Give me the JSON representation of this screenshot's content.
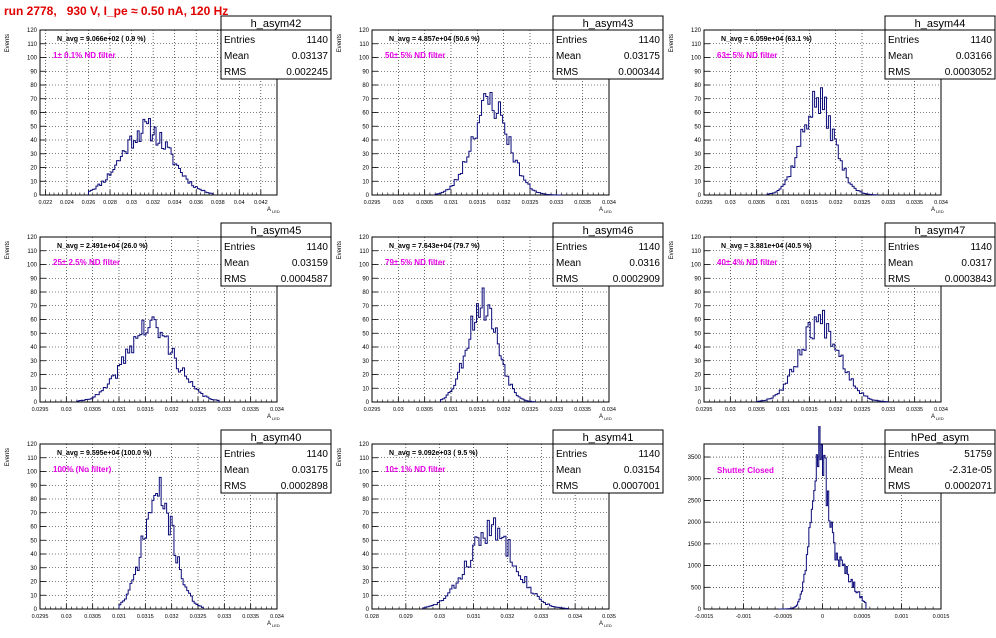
{
  "run_title": "run 2778,   930 V, I_pe ≈ 0.50 nA, 120 Hz",
  "chart_data": [
    {
      "type": "bar",
      "title": "h_asym42",
      "stats": [
        [
          "Entries",
          "1140"
        ],
        [
          "Mean",
          "0.03137"
        ],
        [
          "RMS",
          "0.002245"
        ]
      ],
      "annotation": "N_avg = 9.066e+02 ( 0.9 %)",
      "filter_label": "1± 0.1% ND filter",
      "ylabel": "Events",
      "xlabel": "A",
      "xlabel_sub": "LED",
      "xlim": [
        0.0215,
        0.0435
      ],
      "ylim": [
        0,
        120
      ],
      "xticks": [
        0.022,
        0.024,
        0.026,
        0.028,
        0.03,
        0.032,
        0.034,
        0.036,
        0.038,
        0.04,
        0.042
      ],
      "xticklabels": [
        "0.022",
        "0.024",
        "0.026",
        "0.028",
        "0.03",
        "0.032",
        "0.034",
        "0.036",
        "0.038",
        "0.04",
        "0.042"
      ],
      "yticks": [
        0,
        10,
        20,
        30,
        40,
        50,
        60,
        70,
        80,
        90,
        100,
        110,
        120
      ],
      "yticklabels": [
        "0",
        "10",
        "20",
        "30",
        "40",
        "50",
        "60",
        "70",
        "80",
        "90",
        "100",
        "110",
        "120"
      ],
      "hist": {
        "mean": 0.03137,
        "sigma": 0.00225,
        "peak": 48,
        "start": 0.026,
        "end": 0.0375,
        "nbins": 66,
        "seed": 11
      }
    },
    {
      "type": "bar",
      "title": "h_asym43",
      "stats": [
        [
          "Entries",
          "1140"
        ],
        [
          "Mean",
          "0.03175"
        ],
        [
          "RMS",
          "0.000344"
        ]
      ],
      "annotation": "N_avg = 4.857e+04 (50.6 %)",
      "filter_label": "50± 5% ND filter",
      "ylabel": "Events",
      "xlabel": "A",
      "xlabel_sub": "LED",
      "xlim": [
        0.0295,
        0.034
      ],
      "ylim": [
        0,
        120
      ],
      "xticks": [
        0.0295,
        0.03,
        0.0305,
        0.031,
        0.0315,
        0.032,
        0.0325,
        0.033,
        0.0335,
        0.034
      ],
      "xticklabels": [
        "0.0295",
        "0.03",
        "0.0305",
        "0.031",
        "0.0315",
        "0.032",
        "0.0325",
        "0.033",
        "0.0335",
        "0.034"
      ],
      "yticks": [
        0,
        10,
        20,
        30,
        40,
        50,
        60,
        70,
        80,
        90,
        100,
        110,
        120
      ],
      "yticklabels": [
        "0",
        "10",
        "20",
        "30",
        "40",
        "50",
        "60",
        "70",
        "80",
        "90",
        "100",
        "110",
        "120"
      ],
      "hist": {
        "mean": 0.03175,
        "sigma": 0.00034,
        "peak": 68,
        "start": 0.0307,
        "end": 0.0331,
        "nbins": 60,
        "seed": 23
      }
    },
    {
      "type": "bar",
      "title": "h_asym44",
      "stats": [
        [
          "Entries",
          "1140"
        ],
        [
          "Mean",
          "0.03166"
        ],
        [
          "RMS",
          "0.0003052"
        ]
      ],
      "annotation": "N_avg = 6.059e+04 (63.1 %)",
      "filter_label": "63± 5% ND filter",
      "ylabel": "Events",
      "xlabel": "A",
      "xlabel_sub": "LED",
      "xlim": [
        0.0295,
        0.034
      ],
      "ylim": [
        0,
        120
      ],
      "xticks": [
        0.0295,
        0.03,
        0.0305,
        0.031,
        0.0315,
        0.032,
        0.0325,
        0.033,
        0.0335,
        0.034
      ],
      "xticklabels": [
        "0.0295",
        "0.03",
        "0.0305",
        "0.031",
        "0.0315",
        "0.032",
        "0.0325",
        "0.033",
        "0.0335",
        "0.034"
      ],
      "yticks": [
        0,
        10,
        20,
        30,
        40,
        50,
        60,
        70,
        80,
        90,
        100,
        110,
        120
      ],
      "yticklabels": [
        "0",
        "10",
        "20",
        "30",
        "40",
        "50",
        "60",
        "70",
        "80",
        "90",
        "100",
        "110",
        "120"
      ],
      "hist": {
        "mean": 0.03166,
        "sigma": 0.00031,
        "peak": 68,
        "start": 0.0307,
        "end": 0.0328,
        "nbins": 56,
        "seed": 37
      }
    },
    {
      "type": "bar",
      "title": "h_asym45",
      "stats": [
        [
          "Entries",
          "1140"
        ],
        [
          "Mean",
          "0.03159"
        ],
        [
          "RMS",
          "0.0004587"
        ]
      ],
      "annotation": "N_avg = 2.491e+04 (26.0 %)",
      "filter_label": "25± 2.5% ND filter",
      "ylabel": "Events",
      "xlabel": "A",
      "xlabel_sub": "LED",
      "xlim": [
        0.0295,
        0.034
      ],
      "ylim": [
        0,
        120
      ],
      "xticks": [
        0.0295,
        0.03,
        0.0305,
        0.031,
        0.0315,
        0.032,
        0.0325,
        0.033,
        0.0335,
        0.034
      ],
      "xticklabels": [
        "0.0295",
        "0.03",
        "0.0305",
        "0.031",
        "0.0315",
        "0.032",
        "0.0325",
        "0.033",
        "0.0335",
        "0.034"
      ],
      "yticks": [
        0,
        10,
        20,
        30,
        40,
        50,
        60,
        70,
        80,
        90,
        100,
        110,
        120
      ],
      "yticklabels": [
        "0",
        "10",
        "20",
        "30",
        "40",
        "50",
        "60",
        "70",
        "80",
        "90",
        "100",
        "110",
        "120"
      ],
      "hist": {
        "mean": 0.03159,
        "sigma": 0.00046,
        "peak": 55,
        "start": 0.0302,
        "end": 0.0329,
        "nbins": 70,
        "seed": 41
      }
    },
    {
      "type": "bar",
      "title": "h_asym46",
      "stats": [
        [
          "Entries",
          "1140"
        ],
        [
          "Mean",
          "0.0316"
        ],
        [
          "RMS",
          "0.0002909"
        ]
      ],
      "annotation": "N_avg = 7.643e+04 (79.7 %)",
      "filter_label": "79± 5% ND filter",
      "ylabel": "Events",
      "xlabel": "A",
      "xlabel_sub": "LED",
      "xlim": [
        0.0295,
        0.034
      ],
      "ylim": [
        0,
        120
      ],
      "xticks": [
        0.0295,
        0.03,
        0.0305,
        0.031,
        0.0315,
        0.032,
        0.0325,
        0.033,
        0.0335,
        0.034
      ],
      "xticklabels": [
        "0.0295",
        "0.03",
        "0.0305",
        "0.031",
        "0.0315",
        "0.032",
        "0.0325",
        "0.033",
        "0.0335",
        "0.034"
      ],
      "yticks": [
        0,
        10,
        20,
        30,
        40,
        50,
        60,
        70,
        80,
        90,
        100,
        110,
        120
      ],
      "yticklabels": [
        "0",
        "10",
        "20",
        "30",
        "40",
        "50",
        "60",
        "70",
        "80",
        "90",
        "100",
        "110",
        "120"
      ],
      "hist": {
        "mean": 0.0316,
        "sigma": 0.00029,
        "peak": 72,
        "start": 0.0308,
        "end": 0.0326,
        "nbins": 50,
        "seed": 53
      }
    },
    {
      "type": "bar",
      "title": "h_asym47",
      "stats": [
        [
          "Entries",
          "1140"
        ],
        [
          "Mean",
          "0.0317"
        ],
        [
          "RMS",
          "0.0003843"
        ]
      ],
      "annotation": "N_avg = 3.881e+04 (40.5 %)",
      "filter_label": "40± 4% ND filter",
      "ylabel": "Events",
      "xlabel": "A",
      "xlabel_sub": "LED",
      "xlim": [
        0.0295,
        0.034
      ],
      "ylim": [
        0,
        120
      ],
      "xticks": [
        0.0295,
        0.03,
        0.0305,
        0.031,
        0.0315,
        0.032,
        0.0325,
        0.033,
        0.0335,
        0.034
      ],
      "xticklabels": [
        "0.0295",
        "0.03",
        "0.0305",
        "0.031",
        "0.0315",
        "0.032",
        "0.0325",
        "0.033",
        "0.0335",
        "0.034"
      ],
      "yticks": [
        0,
        10,
        20,
        30,
        40,
        50,
        60,
        70,
        80,
        90,
        100,
        110,
        120
      ],
      "yticklabels": [
        "0",
        "10",
        "20",
        "30",
        "40",
        "50",
        "60",
        "70",
        "80",
        "90",
        "100",
        "110",
        "120"
      ],
      "hist": {
        "mean": 0.0317,
        "sigma": 0.00038,
        "peak": 59,
        "start": 0.0305,
        "end": 0.033,
        "nbins": 64,
        "seed": 67
      }
    },
    {
      "type": "bar",
      "title": "h_asym40",
      "stats": [
        [
          "Entries",
          "1140"
        ],
        [
          "Mean",
          "0.03175"
        ],
        [
          "RMS",
          "0.0002898"
        ]
      ],
      "annotation": "N_avg = 9.595e+04 (100.0 %)",
      "filter_label": "100% (No filter)",
      "ylabel": "Events",
      "xlabel": "A",
      "xlabel_sub": "LED",
      "xlim": [
        0.0295,
        0.034
      ],
      "ylim": [
        0,
        120
      ],
      "xticks": [
        0.0295,
        0.03,
        0.0305,
        0.031,
        0.0315,
        0.032,
        0.0325,
        0.033,
        0.0335,
        0.034
      ],
      "xticklabels": [
        "0.0295",
        "0.03",
        "0.0305",
        "0.031",
        "0.0315",
        "0.032",
        "0.0325",
        "0.033",
        "0.0335",
        "0.034"
      ],
      "yticks": [
        0,
        10,
        20,
        30,
        40,
        50,
        60,
        70,
        80,
        90,
        100,
        110,
        120
      ],
      "yticklabels": [
        "0",
        "10",
        "20",
        "30",
        "40",
        "50",
        "60",
        "70",
        "80",
        "90",
        "100",
        "110",
        "120"
      ],
      "hist": {
        "mean": 0.03175,
        "sigma": 0.00029,
        "peak": 82,
        "start": 0.031,
        "end": 0.0326,
        "nbins": 46,
        "seed": 71
      }
    },
    {
      "type": "bar",
      "title": "h_asym41",
      "stats": [
        [
          "Entries",
          "1140"
        ],
        [
          "Mean",
          "0.03154"
        ],
        [
          "RMS",
          "0.0007001"
        ]
      ],
      "annotation": "N_avg = 9.092e+03 ( 9.5 %)",
      "filter_label": "10± 1% ND filter",
      "ylabel": "Events",
      "xlabel": "A",
      "xlabel_sub": "LED",
      "xlim": [
        0.028,
        0.035
      ],
      "ylim": [
        0,
        120
      ],
      "xticks": [
        0.028,
        0.029,
        0.03,
        0.031,
        0.032,
        0.033,
        0.034,
        0.035
      ],
      "xticklabels": [
        "0.028",
        "0.029",
        "0.03",
        "0.031",
        "0.032",
        "0.033",
        "0.034",
        "0.035"
      ],
      "yticks": [
        0,
        10,
        20,
        30,
        40,
        50,
        60,
        70,
        80,
        90,
        100,
        110,
        120
      ],
      "yticklabels": [
        "0",
        "10",
        "20",
        "30",
        "40",
        "50",
        "60",
        "70",
        "80",
        "90",
        "100",
        "110",
        "120"
      ],
      "hist": {
        "mean": 0.03154,
        "sigma": 0.0007,
        "peak": 57,
        "start": 0.0295,
        "end": 0.0338,
        "nbins": 70,
        "seed": 83
      }
    },
    {
      "type": "bar",
      "title": "hPed_asym",
      "stats": [
        [
          "Entries",
          "51759"
        ],
        [
          "Mean",
          "-2.31e-05"
        ],
        [
          "RMS",
          "0.0002071"
        ]
      ],
      "annotation": "",
      "filter_label": "Shutter Closed",
      "ylabel": "",
      "xlabel": "",
      "xlabel_sub": "",
      "xlim": [
        -0.0015,
        0.0015
      ],
      "ylim": [
        0,
        3800
      ],
      "xticks": [
        -0.0015,
        -0.001,
        -0.0005,
        0,
        0.0005,
        0.001,
        0.0015
      ],
      "xticklabels": [
        "-0.0015",
        "-0.001",
        "-0.0005",
        "0",
        "0.0005",
        "0.001",
        "0.0015"
      ],
      "yticks": [
        0,
        500,
        1000,
        1500,
        2000,
        2500,
        3000,
        3500
      ],
      "yticklabels": [
        "0",
        "500",
        "1000",
        "1500",
        "2000",
        "2500",
        "3000",
        "3500"
      ],
      "hist": {
        "mean": -5e-05,
        "sigma": 0.0001,
        "peak": 3520,
        "start": -0.00055,
        "end": 0.00055,
        "nbins": 70,
        "seed": 97,
        "shoulder": {
          "mean": 0.0002,
          "sigma": 0.00018,
          "peak": 1000
        }
      }
    }
  ]
}
